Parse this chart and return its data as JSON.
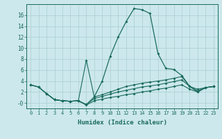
{
  "xlabel": "Humidex (Indice chaleur)",
  "x_values": [
    0,
    1,
    2,
    3,
    4,
    5,
    6,
    7,
    8,
    9,
    10,
    11,
    12,
    13,
    14,
    15,
    16,
    17,
    18,
    19,
    20,
    21,
    22,
    23
  ],
  "line1_y": [
    3.3,
    2.9,
    1.7,
    0.6,
    0.4,
    0.3,
    0.4,
    -0.3,
    1.1,
    4.0,
    8.5,
    12.0,
    14.8,
    17.2,
    17.0,
    16.3,
    9.0,
    6.3,
    6.1,
    5.0,
    3.0,
    2.0,
    2.8,
    3.0
  ],
  "line2_y": [
    3.3,
    2.9,
    1.7,
    0.6,
    0.4,
    0.3,
    0.4,
    7.8,
    1.1,
    1.5,
    2.0,
    2.5,
    3.0,
    3.3,
    3.6,
    3.8,
    4.0,
    4.2,
    4.5,
    4.8,
    3.0,
    2.5,
    2.8,
    3.0
  ],
  "line3_y": [
    3.3,
    2.9,
    1.7,
    0.6,
    0.4,
    0.3,
    0.4,
    -0.3,
    0.8,
    1.2,
    1.6,
    2.0,
    2.3,
    2.6,
    2.9,
    3.1,
    3.3,
    3.6,
    3.9,
    4.2,
    3.0,
    2.2,
    2.8,
    3.0
  ],
  "line4_y": [
    null,
    null,
    1.7,
    0.6,
    0.4,
    0.3,
    0.4,
    -0.4,
    0.4,
    0.7,
    1.0,
    1.2,
    1.5,
    1.7,
    2.0,
    2.2,
    2.5,
    2.7,
    3.0,
    3.3,
    2.5,
    2.0,
    2.8,
    3.0
  ],
  "ylim": [
    -1,
    18
  ],
  "yticks": [
    0,
    2,
    4,
    6,
    8,
    10,
    12,
    14,
    16
  ],
  "ytick_labels": [
    "-0",
    "2",
    "4",
    "6",
    "8",
    "10",
    "12",
    "14",
    "16"
  ],
  "color": "#1a6b5e",
  "bg_color": "#cce8ec",
  "grid_color": "#aacdd4"
}
